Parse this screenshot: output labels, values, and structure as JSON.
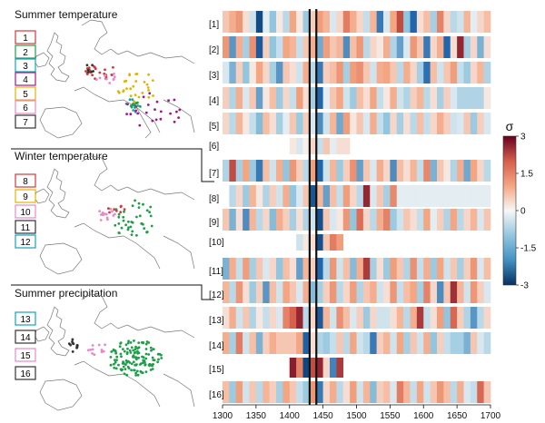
{
  "chart_data": {
    "type": "heatmap",
    "sections": [
      {
        "title": "Summer temperature",
        "rows": [
          1,
          2,
          3,
          4,
          5,
          6,
          7
        ]
      },
      {
        "title": "Winter temperature",
        "rows": [
          8,
          9,
          10,
          11,
          12
        ]
      },
      {
        "title": "Summer precipitation",
        "rows": [
          13,
          14,
          15,
          16
        ]
      }
    ],
    "region_legend": [
      {
        "label": "1",
        "color": "#d13b3b"
      },
      {
        "label": "2",
        "color": "#1f9e4a"
      },
      {
        "label": "3",
        "color": "#17a2b8"
      },
      {
        "label": "4",
        "color": "#9c1a8c"
      },
      {
        "label": "5",
        "color": "#e3b400"
      },
      {
        "label": "6",
        "color": "#e68ac8"
      },
      {
        "label": "7",
        "color": "#333333"
      },
      {
        "label": "8",
        "color": "#d13b3b"
      },
      {
        "label": "9",
        "color": "#e3b400"
      },
      {
        "label": "10",
        "color": "#e68ac8"
      },
      {
        "label": "11",
        "color": "#333333"
      },
      {
        "label": "12",
        "color": "#17a2b8"
      },
      {
        "label": "13",
        "color": "#17a2b8"
      },
      {
        "label": "14",
        "color": "#333333"
      },
      {
        "label": "15",
        "color": "#e68ac8"
      },
      {
        "label": "16",
        "color": "#333333"
      }
    ],
    "row_labels": [
      "[1]",
      "[2]",
      "[3]",
      "[4]",
      "[5]",
      "[6]",
      "[7]",
      "[8]",
      "[9]",
      "[10]",
      "[11]",
      "[12]",
      "[13]",
      "[14]",
      "[15]",
      "[16]"
    ],
    "x_ticks": [
      "1300",
      "1350",
      "1400",
      "1450",
      "1500",
      "1550",
      "1600",
      "1650",
      "1700"
    ],
    "x_range": [
      1300,
      1700
    ],
    "bin_years": 10,
    "vertical_lines": [
      1430,
      1440
    ],
    "colorbar": {
      "symbol": "σ",
      "ticks": [
        "3",
        "1.5",
        "0",
        "-1.5",
        "-3"
      ],
      "range": [
        -3,
        3
      ]
    },
    "rows": [
      {
        "label": "[1]",
        "start": 1300,
        "values": [
          0.6,
          0.9,
          1.2,
          0.3,
          -0.4,
          -2.5,
          -0.2,
          -1.0,
          0.2,
          -0.6,
          1.0,
          0.2,
          -0.9,
          0.5,
          1.1,
          0.8,
          -0.3,
          0.4,
          1.6,
          0.9,
          0.4,
          -0.5,
          0.8,
          -1.8,
          -0.3,
          1.0,
          2.2,
          -1.0,
          -2.0,
          0.3,
          0.7,
          -0.8,
          1.5,
          0.4,
          -0.6,
          -0.4,
          0.8,
          -0.2,
          0.4,
          0.7
        ]
      },
      {
        "label": "[2]",
        "start": 1300,
        "values": [
          1.2,
          -1.5,
          0.9,
          -0.8,
          1.3,
          -2.2,
          0.5,
          -1.0,
          -0.5,
          1.0,
          0.8,
          -0.5,
          0.6,
          0.9,
          -1.3,
          1.1,
          0.6,
          0.8,
          -1.6,
          0.7,
          1.2,
          -0.6,
          0.4,
          0.2,
          0.9,
          -0.7,
          -1.4,
          -0.3,
          1.2,
          0.6,
          -1.8,
          0.4,
          0.9,
          -2.0,
          0.3,
          2.6,
          -0.8,
          0.4,
          -1.2,
          0.3
        ]
      },
      {
        "label": "[3]",
        "start": 1300,
        "values": [
          -0.3,
          -1.2,
          0.5,
          -1.0,
          0.2,
          1.0,
          0.4,
          -0.8,
          -1.5,
          0.6,
          0.3,
          -0.4,
          0.9,
          -0.6,
          -1.8,
          0.5,
          0.7,
          1.2,
          -0.8,
          1.1,
          1.3,
          0.6,
          -0.4,
          0.9,
          1.0,
          0.6,
          -0.6,
          0.9,
          0.4,
          -0.8,
          -1.9,
          0.7,
          -0.4,
          0.6,
          1.1,
          -0.5,
          -0.9,
          0.4,
          0.8,
          -0.7
        ]
      },
      {
        "label": "[4]",
        "start": 1300,
        "values": [
          0.5,
          -0.7,
          0.9,
          -0.3,
          0.6,
          -1.4,
          0.2,
          0.7,
          -0.9,
          0.4,
          -0.5,
          1.1,
          0.3,
          -0.8,
          -2.0,
          -0.2,
          0.6,
          1.0,
          -0.4,
          -0.9,
          0.7,
          0.3,
          1.0,
          -0.5,
          0.2,
          0.9,
          -0.4,
          -0.7,
          0.5,
          0.8,
          -0.6,
          0.3,
          -0.8,
          0.5,
          -0.3,
          -0.7,
          -0.7,
          -0.7,
          -0.7,
          0.2
        ]
      },
      {
        "label": "[5]",
        "start": 1300,
        "values": [
          0.4,
          -0.6,
          0.8,
          0.2,
          -0.5,
          -1.1,
          0.7,
          0.3,
          -0.8,
          -0.2,
          0.6,
          -0.9,
          0.5,
          -0.3,
          -1.6,
          -0.4,
          0.8,
          -1.3,
          1.1,
          0.2,
          0.6,
          -0.3,
          0.9,
          -0.5,
          -1.0,
          0.4,
          -0.8,
          0.3,
          -0.6,
          0.7,
          -0.5,
          0.4,
          0.9,
          0.5,
          -0.4,
          -0.3,
          0.6,
          -0.9,
          0.5,
          -0.3
        ]
      },
      {
        "label": "[6]",
        "start": 1400,
        "values": [
          0.2,
          -0.3,
          0.1,
          0.4,
          -0.5,
          0.6,
          -0.2,
          0.3,
          0.3
        ]
      },
      {
        "label": "[7]",
        "start": 1300,
        "values": [
          -0.7,
          2.2,
          -0.8,
          1.0,
          -0.9,
          -1.8,
          0.7,
          -0.4,
          0.9,
          -1.0,
          1.2,
          0.5,
          -0.6,
          1.1,
          -2.0,
          -0.4,
          0.8,
          -0.9,
          0.5,
          1.3,
          -1.4,
          0.6,
          -0.3,
          0.9,
          0.4,
          -1.6,
          0.7,
          0.3,
          0.8,
          -0.5,
          1.4,
          -1.2,
          0.6,
          0.2,
          -0.7,
          0.9,
          -1.3,
          1.0,
          0.4,
          -0.6
        ]
      },
      {
        "label": "[8]",
        "start": 1310,
        "values": [
          -0.6,
          0.4,
          -0.9,
          0.8,
          0.2,
          -0.7,
          0.5,
          -0.4,
          0.9,
          -1.0,
          -0.3,
          0.6,
          -2.3,
          0.8,
          -1.4,
          0.7,
          -0.5,
          1.1,
          0.4,
          -0.6,
          2.6,
          -0.3,
          0.6,
          -0.8,
          1.4,
          -0.2,
          -0.2,
          -0.2,
          -0.2,
          -0.2,
          -0.2,
          -0.2,
          -0.2,
          -0.2,
          -0.2,
          -0.2,
          -0.2,
          -0.2,
          -0.2
        ]
      },
      {
        "label": "[9]",
        "start": 1300,
        "values": [
          0.6,
          -1.2,
          0.3,
          -1.6,
          0.8,
          -0.6,
          0.4,
          -1.1,
          0.9,
          0.5,
          -0.8,
          0.3,
          -0.7,
          -0.4,
          -2.4,
          0.6,
          -0.3,
          0.2,
          1.2,
          -1.0,
          1.8,
          0.4,
          -0.6,
          0.9,
          1.5,
          -0.9,
          -0.4,
          0.6,
          0.3,
          -0.5,
          1.0,
          -0.2,
          0.5,
          -0.7,
          1.0,
          -0.6,
          0.4,
          0.8,
          -0.3,
          0.6
        ]
      },
      {
        "label": "[10]",
        "start": 1410,
        "values": [
          -0.4,
          0.2,
          0.3,
          -2.4,
          0.6,
          1.6,
          1.1
        ]
      },
      {
        "label": "[11]",
        "start": 1300,
        "values": [
          -1.2,
          0.9,
          -0.5,
          1.1,
          -0.8,
          0.6,
          -0.3,
          0.4,
          -1.0,
          0.7,
          0.3,
          -1.4,
          0.8,
          0.5,
          -2.0,
          -0.6,
          1.2,
          -0.4,
          0.7,
          -1.1,
          0.9,
          2.4,
          -0.8,
          0.3,
          -0.9,
          1.1,
          0.6,
          -0.7,
          1.3,
          -0.5,
          0.9,
          -0.9,
          1.0,
          -0.4,
          0.6,
          -0.8,
          0.5,
          1.2,
          -0.3,
          0.7
        ]
      },
      {
        "label": "[12]",
        "start": 1300,
        "values": [
          0.8,
          -0.6,
          1.2,
          0.3,
          -0.9,
          0.5,
          -1.5,
          0.7,
          -0.4,
          1.0,
          0.6,
          -0.3,
          0.9,
          -1.1,
          -0.8,
          0.5,
          1.2,
          -0.6,
          0.4,
          1.1,
          -0.7,
          0.6,
          0.9,
          -0.4,
          0.3,
          1.2,
          -0.5,
          0.7,
          1.0,
          -0.8,
          1.5,
          0.4,
          -1.6,
          0.6,
          2.5,
          0.8,
          -0.4,
          1.2,
          0.5,
          -0.3
        ]
      },
      {
        "label": "[13]",
        "start": 1300,
        "values": [
          0.3,
          0.9,
          -0.4,
          0.6,
          -0.7,
          0.2,
          -0.5,
          0.4,
          -0.3,
          1.5,
          2.0,
          2.6,
          -0.6,
          0.4,
          -2.2,
          0.8,
          -0.4,
          1.3,
          0.7,
          -0.3,
          0.5,
          -0.9,
          0.4,
          -0.4,
          -0.4,
          0.3,
          0.8,
          -0.6,
          0.9,
          2.4,
          -0.5,
          0.3,
          1.1,
          -1.0,
          1.9,
          0.5,
          -0.7,
          -1.5,
          -0.6,
          0.4
        ]
      },
      {
        "label": "[14]",
        "start": 1300,
        "values": [
          0.9,
          -0.8,
          1.6,
          -0.4,
          0.7,
          -1.2,
          0.5,
          0.9,
          0.6,
          0.6,
          0.6,
          1.0,
          -2.1,
          0.3,
          -0.7,
          -0.9,
          -0.5,
          0.6,
          -0.6,
          1.0,
          -0.4,
          -0.6,
          -1.8,
          0.5,
          0.8,
          -0.4,
          1.0,
          -0.8,
          0.6,
          -0.4,
          0.9,
          -1.0,
          0.5,
          -0.5,
          -0.8,
          -0.8,
          -1.2,
          0.6,
          -0.3,
          -0.6
        ]
      },
      {
        "label": "[15]",
        "start": 1400,
        "values": [
          2.7,
          1.5,
          -2.6,
          2.2,
          2.6,
          0.4,
          -1.7,
          2.4
        ]
      },
      {
        "label": "[16]",
        "start": 1300,
        "values": [
          0.7,
          -0.9,
          1.1,
          -0.4,
          0.6,
          -0.6,
          0.8,
          0.5,
          -0.8,
          1.0,
          0.6,
          -0.5,
          -0.9,
          1.2,
          -1.8,
          0.4,
          0.9,
          -0.6,
          0.3,
          1.1,
          -0.4,
          0.8,
          -1.1,
          0.5,
          0.7,
          -0.3,
          1.6,
          0.8,
          -0.5,
          1.0,
          -0.4,
          0.6,
          1.2,
          0.7,
          -0.6,
          0.9,
          -0.3,
          -0.5,
          1.9,
          0.6
        ]
      }
    ]
  }
}
